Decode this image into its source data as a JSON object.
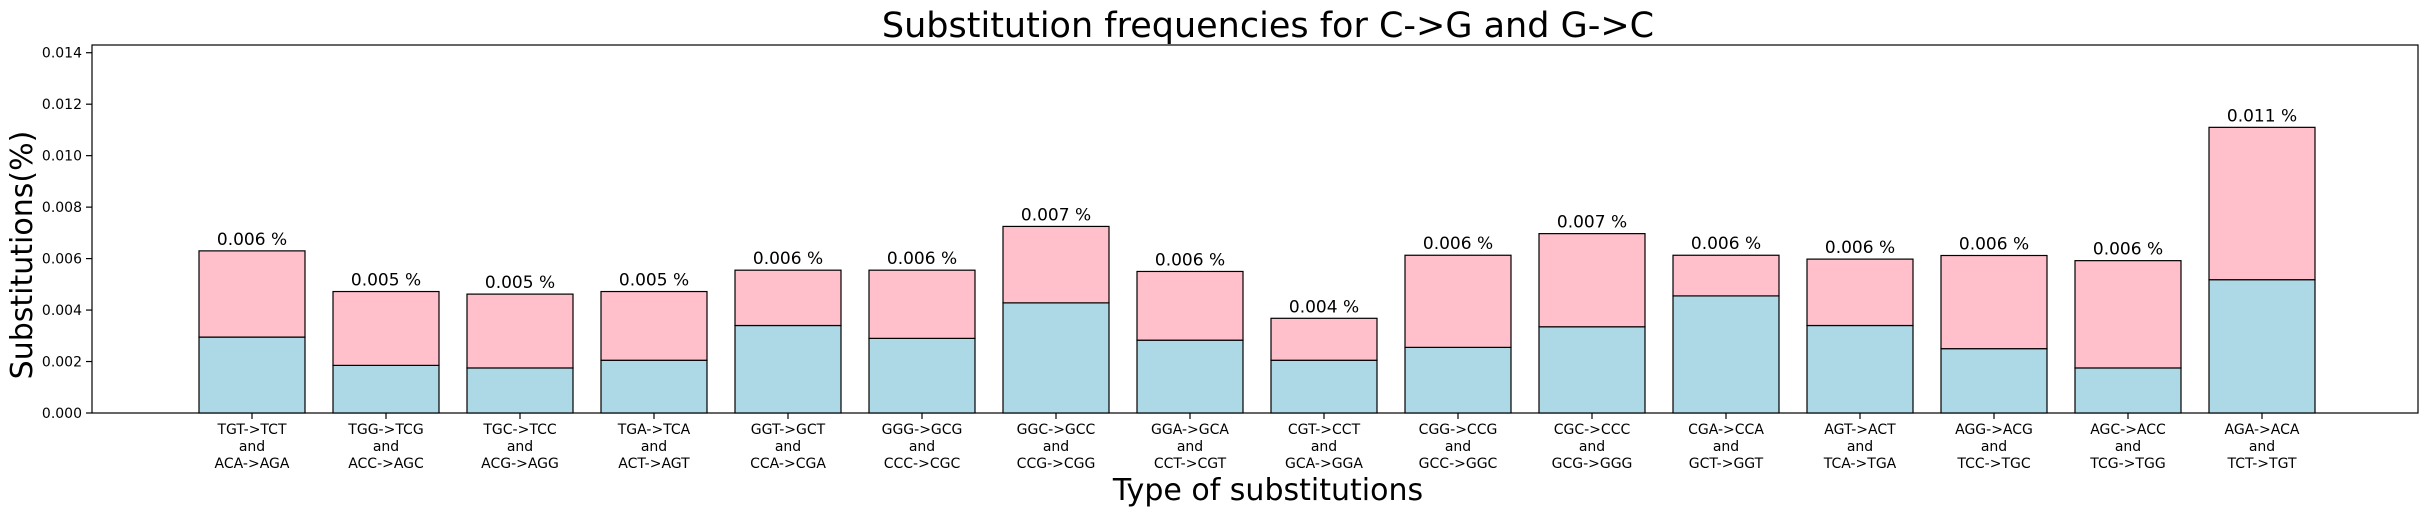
{
  "chart_data": {
    "type": "bar",
    "stacked": true,
    "title": "Substitution frequencies for C->G and G->C",
    "xlabel": "Type of substitutions",
    "ylabel": "Substitutions(%)",
    "ylim": [
      0,
      0.0143
    ],
    "yticks": [
      "0.000",
      "0.002",
      "0.004",
      "0.006",
      "0.008",
      "0.010",
      "0.012",
      "0.014"
    ],
    "grid": false,
    "categories": [
      [
        "TGT->TCT",
        "and",
        "ACA->AGA"
      ],
      [
        "TGG->TCG",
        "and",
        "ACC->AGC"
      ],
      [
        "TGC->TCC",
        "and",
        "ACG->AGG"
      ],
      [
        "TGA->TCA",
        "and",
        "ACT->AGT"
      ],
      [
        "GGT->GCT",
        "and",
        "CCA->CGA"
      ],
      [
        "GGG->GCG",
        "and",
        "CCC->CGC"
      ],
      [
        "GGC->GCC",
        "and",
        "CCG->CGG"
      ],
      [
        "GGA->GCA",
        "and",
        "CCT->CGT"
      ],
      [
        "CGT->CCT",
        "and",
        "GCA->GGA"
      ],
      [
        "CGG->CCG",
        "and",
        "GCC->GGC"
      ],
      [
        "CGC->CCC",
        "and",
        "GCG->GGG"
      ],
      [
        "CGA->CCA",
        "and",
        "GCT->GGT"
      ],
      [
        "AGT->ACT",
        "and",
        "TCA->TGA"
      ],
      [
        "AGG->ACG",
        "and",
        "TCC->TGC"
      ],
      [
        "AGC->ACC",
        "and",
        "TCG->TGG"
      ],
      [
        "AGA->ACA",
        "and",
        "TCT->TGT"
      ]
    ],
    "series": [
      {
        "color": "#add8e6",
        "values": [
          0.00295,
          0.00185,
          0.00175,
          0.00205,
          0.0034,
          0.0029,
          0.00428,
          0.00283,
          0.00205,
          0.00255,
          0.00335,
          0.00455,
          0.0034,
          0.0025,
          0.00175,
          0.00518
        ]
      },
      {
        "color": "#ffc0cb",
        "values": [
          0.00335,
          0.00287,
          0.00287,
          0.00267,
          0.00215,
          0.00265,
          0.00297,
          0.00267,
          0.00163,
          0.00358,
          0.00362,
          0.00158,
          0.00258,
          0.00362,
          0.00417,
          0.00592
        ]
      }
    ],
    "totals": [
      0.0063,
      0.00472,
      0.00462,
      0.00472,
      0.00555,
      0.00555,
      0.00725,
      0.0055,
      0.00368,
      0.00613,
      0.00697,
      0.00613,
      0.00598,
      0.00612,
      0.00592,
      0.0111
    ],
    "data_labels": [
      "0.006 %",
      "0.005 %",
      "0.005 %",
      "0.005 %",
      "0.006 %",
      "0.006 %",
      "0.007 %",
      "0.006 %",
      "0.004 %",
      "0.006 %",
      "0.007 %",
      "0.006 %",
      "0.006 %",
      "0.006 %",
      "0.006 %",
      "0.011 %"
    ]
  }
}
